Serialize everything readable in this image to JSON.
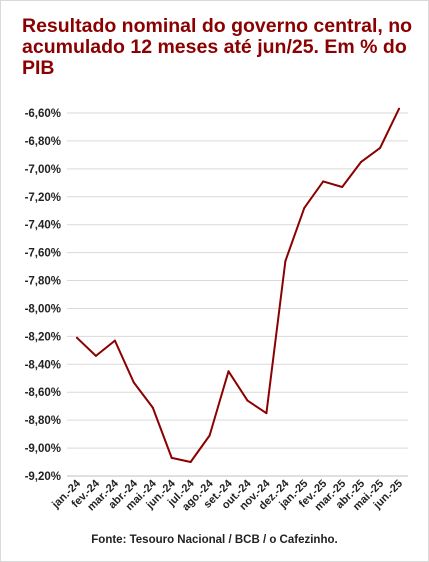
{
  "chart_data": {
    "type": "line",
    "title": "Resultado nominal do governo central, no acumulado 12 meses até jun/25. Em % do PIB",
    "categories": [
      "jan.-24",
      "fev.-24",
      "mar.-24",
      "abr.-24",
      "mai.-24",
      "jun.-24",
      "jul.-24",
      "ago.-24",
      "set.-24",
      "out.-24",
      "nov.-24",
      "dez.-24",
      "jan.-25",
      "fev.-25",
      "mar.-25",
      "abr.-25",
      "mai.-25",
      "jun.-25"
    ],
    "values": [
      -8.21,
      -8.34,
      -8.23,
      -8.53,
      -8.71,
      -9.07,
      -9.1,
      -8.91,
      -8.45,
      -8.66,
      -8.75,
      -7.66,
      -7.28,
      -7.09,
      -7.13,
      -6.95,
      -6.85,
      -6.57
    ],
    "ylim": [
      -9.2,
      -6.6
    ],
    "yticks": [
      "-6,60%",
      "-6,80%",
      "-7,00%",
      "-7,20%",
      "-7,40%",
      "-7,60%",
      "-7,80%",
      "-8,00%",
      "-8,20%",
      "-8,40%",
      "-8,60%",
      "-8,80%",
      "-9,00%",
      "-9,20%"
    ],
    "ytick_values": [
      -6.6,
      -6.8,
      -7.0,
      -7.2,
      -7.4,
      -7.6,
      -7.8,
      -8.0,
      -8.2,
      -8.4,
      -8.6,
      -8.8,
      -9.0,
      -9.2
    ],
    "line_color": "#8b0000",
    "grid": true,
    "source": "Fonte: Tesouro Nacional / BCB / o Cafezinho."
  }
}
